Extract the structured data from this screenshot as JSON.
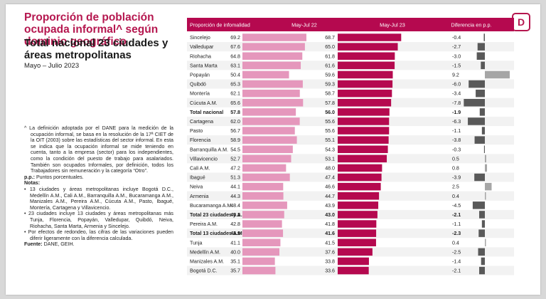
{
  "slide": {
    "title": "Proporción de población ocupada informal^ según dominio geográfico",
    "subtitle": "Total nacional 23 ciudades y áreas metropolitanas",
    "period": "Mayo – Julio 2023",
    "logo_glyph": "D",
    "notes": {
      "definition": "^ La definición adoptada por el DANE para la medición de la ocupación informal, se basa en la resolución de la 17ª CIET de la OIT (2003) sobre las estadísticas del sector informal. En esta se indica que la ocupación informal se mide teniendo en cuenta, tanto a la empresa (sector) para los independientes, como la condición del puesto de trabajo para asalariados. También son ocupados Informales, por definición, todos los Trabajadores sin remuneración y la categoría “Otro”.",
      "pp_label": "p.p.:",
      "pp_text": " Puntos porcentuales.",
      "notas_label": "Notas:",
      "items": [
        "13 ciudades y áreas metropolitanas incluye Bogotá D.C., Medellín A.M., Cali A.M., Barranquilla A.M., Bucaramanga A.M., Manizales A.M., Pereira A.M., Cúcuta A.M., Pasto, Ibagué, Montería, Cartagena y Villavicencio.",
        "23 ciudades incluye 13 ciudades y áreas metropolitanas más Tunja, Florencia, Popayán, Valledupar, Quibdó, Neiva, Riohacha, Santa Marta, Armenia y Sincelejo.",
        "Por efectos de redondeo, las cifras de las variaciones pueden diferir ligeramente con la diferencia calculada."
      ],
      "fuente_label": "Fuente:",
      "fuente_text": " DANE, GEIH."
    }
  },
  "chart_data": {
    "type": "bar",
    "columns": [
      "Proporción de infomalidad",
      "May-Jul 22",
      "May-Jul 23",
      "Diferencia en p.p."
    ],
    "categories": [
      "Sincelejo",
      "Valledupar",
      "Riohacha",
      "Santa Marta",
      "Popayán",
      "Quibdó",
      "Montería",
      "Cúcuta A.M.",
      "Total nacional",
      "Cartagena",
      "Pasto",
      "Florencia",
      "Barranquilla A.M.",
      "Villavicencio",
      "Cali A.M.",
      "Ibagué",
      "Neiva",
      "Armenia",
      "Bucaramanga A.M.",
      "Total 23 ciudades y A.M.",
      "Pereira A.M.",
      "Total 13 ciudades A.M.",
      "Tunja",
      "Medellín A.M.",
      "Manizales A.M.",
      "Bogotá D.C."
    ],
    "bold_categories": [
      "Total nacional",
      "Total 23 ciudades y A.M.",
      "Total 13 ciudades A.M."
    ],
    "series": [
      {
        "name": "May-Jul 22",
        "color": "#e597bc",
        "values": [
          69.2,
          67.6,
          64.8,
          63.1,
          50.4,
          65.3,
          62.1,
          65.6,
          57.8,
          62.0,
          56.7,
          58.9,
          54.5,
          52.7,
          47.2,
          51.3,
          44.1,
          44.3,
          48.4,
          45.2,
          42.8,
          43.9,
          41.1,
          40.0,
          35.1,
          35.7
        ]
      },
      {
        "name": "May-Jul 23",
        "color": "#b5094f",
        "values": [
          68.7,
          65.0,
          61.8,
          61.6,
          59.6,
          59.3,
          58.7,
          57.8,
          56.0,
          55.6,
          55.6,
          55.1,
          54.3,
          53.1,
          48.0,
          47.4,
          46.6,
          44.7,
          43.9,
          43.0,
          41.8,
          41.6,
          41.5,
          37.6,
          33.8,
          33.6
        ]
      },
      {
        "name": "Diferencia en p.p.",
        "color_negative": "#595959",
        "color_positive": "#a6a6a6",
        "values": [
          -0.4,
          -2.7,
          -3.0,
          -1.5,
          9.2,
          -6.0,
          -3.4,
          -7.8,
          -1.9,
          -6.3,
          -1.1,
          -3.8,
          -0.3,
          0.5,
          0.8,
          -3.9,
          2.5,
          0.4,
          -4.5,
          -2.1,
          -1.1,
          -2.3,
          0.4,
          -2.5,
          -1.4,
          -2.1
        ]
      }
    ],
    "header_color": "#b5094f",
    "stripe_color": "#f2f2f2"
  }
}
